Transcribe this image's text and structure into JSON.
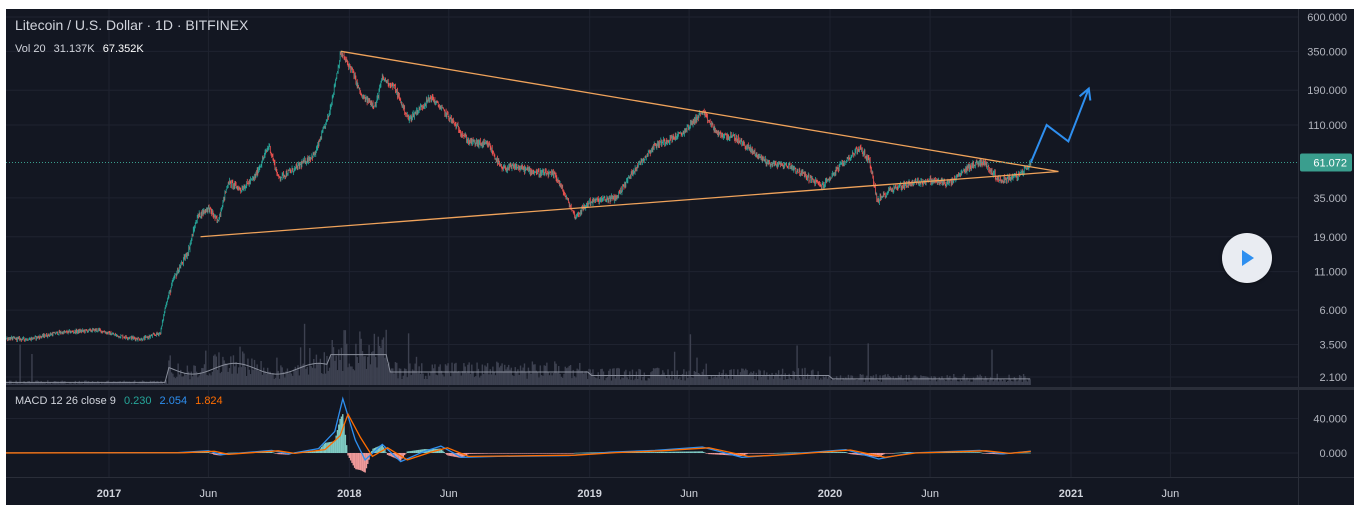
{
  "header": {
    "title": "Litecoin / U.S. Dollar · 1D · BITFINEX",
    "volume_legend": {
      "label": "Vol 20",
      "value1": "31.137K",
      "value2": "67.352K"
    },
    "macd_legend": {
      "label": "MACD 12 26 close 9",
      "hist": "0.230",
      "macd": "2.054",
      "signal": "1.824"
    }
  },
  "colors": {
    "background": "#131722",
    "up_candle": "#26a69a",
    "down_candle": "#ef5350",
    "trendline": "#f0a35b",
    "projection": "#2e8ff0",
    "volume": "#3d4150",
    "macd_line": "#2e8ff0",
    "signal_line": "#ff6d00",
    "price_tag": "#3a9e8e"
  },
  "current_price": "61.072",
  "icons": {
    "play": "play-icon"
  },
  "chart_data": [
    {
      "type": "candlestick",
      "title": "Litecoin / U.S. Dollar · 1D · BITFINEX",
      "scale": "log",
      "ylim": [
        1.9,
        700
      ],
      "x_ticks": [
        "2017",
        "Jun",
        "2018",
        "Jun",
        "2019",
        "Jun",
        "2020",
        "Jun",
        "2021",
        "Jun"
      ],
      "y_ticks": [
        "600.000",
        "350.000",
        "190.000",
        "110.000",
        "61.072",
        "35.000",
        "19.000",
        "11.000",
        "6.000",
        "3.500",
        "2.100"
      ],
      "grid": true,
      "price_path": [
        [
          "2016-05-01",
          4.0
        ],
        [
          "2016-09-01",
          3.8
        ],
        [
          "2016-10-15",
          4.2
        ],
        [
          "2016-12-15",
          4.4
        ],
        [
          "2017-01-15",
          4.0
        ],
        [
          "2017-02-20",
          3.8
        ],
        [
          "2017-03-20",
          4.2
        ],
        [
          "2017-03-28",
          6.5
        ],
        [
          "2017-04-10",
          10
        ],
        [
          "2017-05-01",
          15
        ],
        [
          "2017-05-15",
          26
        ],
        [
          "2017-06-01",
          30
        ],
        [
          "2017-06-15",
          24
        ],
        [
          "2017-07-01",
          45
        ],
        [
          "2017-07-20",
          40
        ],
        [
          "2017-08-10",
          48
        ],
        [
          "2017-09-01",
          80
        ],
        [
          "2017-09-15",
          48
        ],
        [
          "2017-10-10",
          55
        ],
        [
          "2017-11-10",
          70
        ],
        [
          "2017-12-01",
          130
        ],
        [
          "2017-12-19",
          340
        ],
        [
          "2018-01-05",
          260
        ],
        [
          "2018-01-20",
          170
        ],
        [
          "2018-02-10",
          150
        ],
        [
          "2018-02-20",
          230
        ],
        [
          "2018-03-10",
          200
        ],
        [
          "2018-04-01",
          120
        ],
        [
          "2018-05-05",
          170
        ],
        [
          "2018-06-01",
          125
        ],
        [
          "2018-07-01",
          85
        ],
        [
          "2018-08-01",
          80
        ],
        [
          "2018-08-20",
          55
        ],
        [
          "2018-09-10",
          57
        ],
        [
          "2018-10-15",
          52
        ],
        [
          "2018-11-10",
          50
        ],
        [
          "2018-12-10",
          26
        ],
        [
          "2019-01-01",
          33
        ],
        [
          "2019-02-10",
          35
        ],
        [
          "2019-03-10",
          55
        ],
        [
          "2019-04-10",
          80
        ],
        [
          "2019-05-20",
          95
        ],
        [
          "2019-06-21",
          135
        ],
        [
          "2019-07-15",
          95
        ],
        [
          "2019-08-10",
          90
        ],
        [
          "2019-09-10",
          70
        ],
        [
          "2019-10-01",
          60
        ],
        [
          "2019-11-01",
          58
        ],
        [
          "2019-12-20",
          42
        ],
        [
          "2020-01-20",
          60
        ],
        [
          "2020-02-15",
          77
        ],
        [
          "2020-03-01",
          62
        ],
        [
          "2020-03-13",
          33
        ],
        [
          "2020-04-01",
          40
        ],
        [
          "2020-05-01",
          44
        ],
        [
          "2020-06-01",
          46
        ],
        [
          "2020-07-01",
          44
        ],
        [
          "2020-08-01",
          58
        ],
        [
          "2020-08-20",
          62
        ],
        [
          "2020-09-15",
          46
        ],
        [
          "2020-10-15",
          50
        ],
        [
          "2020-11-01",
          61
        ]
      ],
      "trendlines": [
        {
          "name": "resistance",
          "points": [
            [
              "2017-12-19",
              350
            ],
            [
              "2020-12-13",
              53
            ]
          ]
        },
        {
          "name": "support",
          "points": [
            [
              "2017-05-20",
              19
            ],
            [
              "2020-12-13",
              53
            ]
          ]
        }
      ],
      "projection": [
        [
          "2020-11-01",
          61
        ],
        [
          "2020-11-25",
          110
        ],
        [
          "2020-12-28",
          85
        ],
        [
          "2021-01-28",
          195
        ]
      ]
    },
    {
      "type": "bar",
      "title": "Vol 20",
      "series": [
        {
          "name": "Vol 20",
          "values_by_period": "low until Apr 2017, peaks around Dec 2017, declining through 2020"
        }
      ],
      "grid": true
    },
    {
      "type": "line",
      "title": "MACD 12 26 close 9",
      "y_ticks": [
        "40.000",
        "0.000"
      ],
      "ylim": [
        -18,
        65
      ],
      "series": [
        {
          "name": "MACD",
          "points": [
            [
              "2016-05-01",
              0
            ],
            [
              "2017-04-15",
              0.5
            ],
            [
              "2017-06-01",
              2.5
            ],
            [
              "2017-06-20",
              -2
            ],
            [
              "2017-09-05",
              3
            ],
            [
              "2017-10-01",
              -1
            ],
            [
              "2017-11-15",
              5
            ],
            [
              "2017-12-10",
              25
            ],
            [
              "2017-12-22",
              63
            ],
            [
              "2018-01-10",
              15
            ],
            [
              "2018-01-25",
              -8
            ],
            [
              "2018-02-20",
              10
            ],
            [
              "2018-03-20",
              -10
            ],
            [
              "2018-04-25",
              2
            ],
            [
              "2018-05-20",
              8
            ],
            [
              "2018-06-20",
              -5
            ],
            [
              "2018-08-15",
              -4
            ],
            [
              "2018-11-30",
              -3
            ],
            [
              "2019-02-01",
              1
            ],
            [
              "2019-04-10",
              3
            ],
            [
              "2019-06-21",
              7
            ],
            [
              "2019-08-20",
              -5
            ],
            [
              "2019-10-20",
              -2
            ],
            [
              "2020-01-25",
              4
            ],
            [
              "2020-03-15",
              -7
            ],
            [
              "2020-05-01",
              0
            ],
            [
              "2020-08-15",
              3
            ],
            [
              "2020-09-20",
              -1
            ],
            [
              "2020-11-01",
              2.05
            ]
          ]
        },
        {
          "name": "Signal",
          "points": [
            [
              "2016-05-01",
              0
            ],
            [
              "2017-04-25",
              0.3
            ],
            [
              "2017-06-10",
              2
            ],
            [
              "2017-07-01",
              -1.5
            ],
            [
              "2017-09-15",
              2.5
            ],
            [
              "2017-10-10",
              -0.5
            ],
            [
              "2017-11-25",
              4
            ],
            [
              "2017-12-18",
              20
            ],
            [
              "2017-12-30",
              45
            ],
            [
              "2018-01-18",
              18
            ],
            [
              "2018-02-05",
              -4
            ],
            [
              "2018-02-28",
              6
            ],
            [
              "2018-03-30",
              -8
            ],
            [
              "2018-05-05",
              1
            ],
            [
              "2018-05-30",
              6
            ],
            [
              "2018-07-01",
              -4
            ],
            [
              "2018-08-25",
              -3.5
            ],
            [
              "2018-12-10",
              -2.5
            ],
            [
              "2019-02-10",
              0.5
            ],
            [
              "2019-04-20",
              2.5
            ],
            [
              "2019-07-01",
              6
            ],
            [
              "2019-08-30",
              -4
            ],
            [
              "2019-10-30",
              -1.8
            ],
            [
              "2020-02-01",
              3.5
            ],
            [
              "2020-03-25",
              -5
            ],
            [
              "2020-05-10",
              0
            ],
            [
              "2020-08-25",
              2.5
            ],
            [
              "2020-09-30",
              -0.5
            ],
            [
              "2020-11-01",
              1.82
            ]
          ]
        }
      ]
    }
  ]
}
